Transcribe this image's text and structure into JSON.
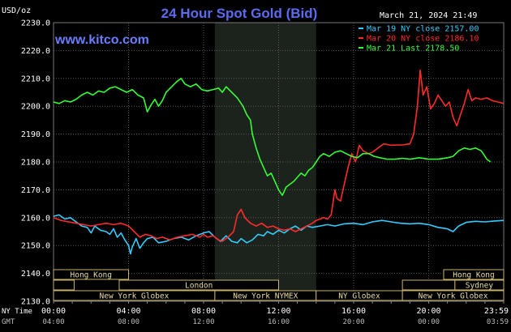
{
  "chart_data": {
    "type": "line",
    "title": "24 Hour Spot Gold (Bid)",
    "watermark": "www.kitco.com",
    "ylabel": "USD/oz",
    "date_label": "March 21, 2024 21:49",
    "ylim": [
      2130,
      2230
    ],
    "y_ticks": [
      "2230.0",
      "2220.0",
      "2210.0",
      "2200.0",
      "2190.0",
      "2180.0",
      "2170.0",
      "2160.0",
      "2150.0",
      "2140.0",
      "2130.0"
    ],
    "xlim": [
      0,
      24
    ],
    "x_ticks_ny": [
      "00:00",
      "04:00",
      "08:00",
      "12:00",
      "16:00",
      "20:00",
      "23:59"
    ],
    "x_ticks_gmt": [
      "04:00",
      "08:00",
      "12:00",
      "16:00",
      "20:00",
      "00:00",
      "03:59"
    ],
    "x_axis_ny_label": "NY Time",
    "x_axis_gmt_label": "GMT",
    "shaded_window": [
      8.6,
      14.0
    ],
    "grid": true,
    "legend_position": "top-right",
    "colors": {
      "background": "#000000",
      "grid": "#5a5a5a",
      "axis_text": "#ffffff",
      "title": "#5b6cf0",
      "watermark": "#6b7dff",
      "shade": "#1c221c",
      "session_box": "#c8b26a",
      "session_text": "#e8dca0"
    },
    "series": [
      {
        "name": "Mar 19 NY close 2157.00",
        "color": "#33ccff",
        "points": [
          [
            0,
            2160.5
          ],
          [
            0.3,
            2161
          ],
          [
            0.6,
            2159.5
          ],
          [
            0.9,
            2160
          ],
          [
            1.2,
            2158.5
          ],
          [
            1.5,
            2157
          ],
          [
            1.8,
            2156.5
          ],
          [
            2.0,
            2154.5
          ],
          [
            2.2,
            2157
          ],
          [
            2.5,
            2155.5
          ],
          [
            2.8,
            2155
          ],
          [
            3.0,
            2154
          ],
          [
            3.2,
            2156
          ],
          [
            3.4,
            2153
          ],
          [
            3.6,
            2154.5
          ],
          [
            3.8,
            2152
          ],
          [
            4.0,
            2150
          ],
          [
            4.1,
            2147
          ],
          [
            4.2,
            2149.5
          ],
          [
            4.4,
            2152.5
          ],
          [
            4.6,
            2149
          ],
          [
            4.8,
            2151
          ],
          [
            5.0,
            2152.5
          ],
          [
            5.3,
            2153
          ],
          [
            5.6,
            2151
          ],
          [
            6.0,
            2151.5
          ],
          [
            6.4,
            2152.5
          ],
          [
            6.8,
            2153
          ],
          [
            7.2,
            2152
          ],
          [
            7.6,
            2153.5
          ],
          [
            8.0,
            2154.5
          ],
          [
            8.3,
            2155
          ],
          [
            8.6,
            2153
          ],
          [
            8.9,
            2151.5
          ],
          [
            9.2,
            2153.5
          ],
          [
            9.5,
            2151.5
          ],
          [
            9.8,
            2151
          ],
          [
            10.0,
            2152.5
          ],
          [
            10.3,
            2151
          ],
          [
            10.6,
            2152
          ],
          [
            10.9,
            2154
          ],
          [
            11.2,
            2153.5
          ],
          [
            11.4,
            2155
          ],
          [
            11.7,
            2154
          ],
          [
            12.0,
            2155.5
          ],
          [
            12.3,
            2154.5
          ],
          [
            12.6,
            2156
          ],
          [
            12.9,
            2157
          ],
          [
            13.2,
            2155.5
          ],
          [
            13.5,
            2157
          ],
          [
            13.8,
            2156.5
          ],
          [
            14.2,
            2157
          ],
          [
            14.6,
            2157.5
          ],
          [
            15.0,
            2157
          ],
          [
            15.5,
            2157.8
          ],
          [
            16.0,
            2158
          ],
          [
            16.5,
            2157.5
          ],
          [
            17.0,
            2158.5
          ],
          [
            17.5,
            2159
          ],
          [
            18.0,
            2158.5
          ],
          [
            18.5,
            2158
          ],
          [
            19.0,
            2157.8
          ],
          [
            19.5,
            2158
          ],
          [
            20.0,
            2157.5
          ],
          [
            20.5,
            2156.5
          ],
          [
            21.0,
            2156
          ],
          [
            21.3,
            2155
          ],
          [
            21.6,
            2157
          ],
          [
            22.0,
            2158.3
          ],
          [
            22.5,
            2158.7
          ],
          [
            23.0,
            2158.5
          ],
          [
            23.5,
            2158.8
          ],
          [
            24.0,
            2159
          ]
        ]
      },
      {
        "name": "Mar 20 NY close 2186.10",
        "color": "#ff2a2a",
        "points": [
          [
            0,
            2160
          ],
          [
            0.4,
            2159
          ],
          [
            0.8,
            2158.5
          ],
          [
            1.2,
            2158
          ],
          [
            1.6,
            2157.5
          ],
          [
            2.0,
            2157
          ],
          [
            2.4,
            2157.5
          ],
          [
            2.8,
            2158
          ],
          [
            3.2,
            2157.5
          ],
          [
            3.6,
            2158
          ],
          [
            4.0,
            2157
          ],
          [
            4.3,
            2155
          ],
          [
            4.6,
            2153
          ],
          [
            4.9,
            2154
          ],
          [
            5.2,
            2153.5
          ],
          [
            5.5,
            2152.5
          ],
          [
            5.8,
            2153
          ],
          [
            6.2,
            2152
          ],
          [
            6.6,
            2153
          ],
          [
            7.0,
            2153.5
          ],
          [
            7.4,
            2154
          ],
          [
            7.8,
            2153
          ],
          [
            8.0,
            2154
          ],
          [
            8.2,
            2153
          ],
          [
            8.5,
            2153.5
          ],
          [
            8.8,
            2152
          ],
          [
            9.0,
            2151.5
          ],
          [
            9.3,
            2153
          ],
          [
            9.6,
            2155
          ],
          [
            9.8,
            2161
          ],
          [
            10.0,
            2163
          ],
          [
            10.2,
            2160
          ],
          [
            10.5,
            2158
          ],
          [
            10.8,
            2157
          ],
          [
            11.1,
            2158
          ],
          [
            11.4,
            2156.5
          ],
          [
            11.7,
            2157
          ],
          [
            12.0,
            2156
          ],
          [
            12.3,
            2155.5
          ],
          [
            12.6,
            2156
          ],
          [
            12.9,
            2155
          ],
          [
            13.2,
            2156
          ],
          [
            13.5,
            2157
          ],
          [
            13.8,
            2158
          ],
          [
            14.0,
            2159
          ],
          [
            14.2,
            2159.5
          ],
          [
            14.4,
            2160
          ],
          [
            14.6,
            2159.5
          ],
          [
            14.8,
            2161
          ],
          [
            15.0,
            2170
          ],
          [
            15.1,
            2167
          ],
          [
            15.3,
            2166
          ],
          [
            15.5,
            2172
          ],
          [
            15.7,
            2178
          ],
          [
            15.9,
            2183
          ],
          [
            16.1,
            2180
          ],
          [
            16.3,
            2186
          ],
          [
            16.5,
            2184
          ],
          [
            16.8,
            2183
          ],
          [
            17.0,
            2183.5
          ],
          [
            17.3,
            2185
          ],
          [
            17.6,
            2186.5
          ],
          [
            18.0,
            2186
          ],
          [
            18.3,
            2186.1
          ],
          [
            18.6,
            2186.1
          ],
          [
            19.0,
            2186.5
          ],
          [
            19.2,
            2190
          ],
          [
            19.4,
            2200
          ],
          [
            19.55,
            2213
          ],
          [
            19.7,
            2204
          ],
          [
            19.9,
            2207
          ],
          [
            20.1,
            2199
          ],
          [
            20.3,
            2201
          ],
          [
            20.5,
            2204
          ],
          [
            20.7,
            2202
          ],
          [
            20.9,
            2200
          ],
          [
            21.1,
            2201.5
          ],
          [
            21.3,
            2196
          ],
          [
            21.5,
            2193
          ],
          [
            21.7,
            2197
          ],
          [
            21.9,
            2201
          ],
          [
            22.1,
            2206
          ],
          [
            22.3,
            2202
          ],
          [
            22.5,
            2203
          ],
          [
            22.8,
            2202.5
          ],
          [
            23.1,
            2203
          ],
          [
            23.4,
            2202
          ],
          [
            23.7,
            2201.5
          ],
          [
            24.0,
            2201
          ]
        ]
      },
      {
        "name": "Mar 21 Last 2178.50",
        "color": "#33ff33",
        "points": [
          [
            0,
            2201.5
          ],
          [
            0.3,
            2201
          ],
          [
            0.6,
            2202
          ],
          [
            0.9,
            2201.5
          ],
          [
            1.2,
            2202.5
          ],
          [
            1.5,
            2204
          ],
          [
            1.8,
            2205
          ],
          [
            2.1,
            2204
          ],
          [
            2.4,
            2205.5
          ],
          [
            2.7,
            2205
          ],
          [
            3.0,
            2206.5
          ],
          [
            3.3,
            2207
          ],
          [
            3.6,
            2206
          ],
          [
            3.9,
            2205
          ],
          [
            4.2,
            2206
          ],
          [
            4.5,
            2204
          ],
          [
            4.8,
            2203
          ],
          [
            5.0,
            2198
          ],
          [
            5.2,
            2200.5
          ],
          [
            5.4,
            2202.5
          ],
          [
            5.6,
            2200
          ],
          [
            5.8,
            2202
          ],
          [
            6.0,
            2205
          ],
          [
            6.3,
            2207
          ],
          [
            6.6,
            2209
          ],
          [
            6.8,
            2210
          ],
          [
            7.0,
            2208
          ],
          [
            7.3,
            2207
          ],
          [
            7.6,
            2208
          ],
          [
            7.9,
            2206
          ],
          [
            8.2,
            2205.5
          ],
          [
            8.5,
            2206
          ],
          [
            8.8,
            2206.5
          ],
          [
            9.0,
            2205
          ],
          [
            9.2,
            2207
          ],
          [
            9.5,
            2205
          ],
          [
            9.8,
            2203
          ],
          [
            10.1,
            2200
          ],
          [
            10.3,
            2197
          ],
          [
            10.5,
            2195
          ],
          [
            10.6,
            2190
          ],
          [
            10.8,
            2185
          ],
          [
            11.0,
            2181
          ],
          [
            11.2,
            2178
          ],
          [
            11.4,
            2175
          ],
          [
            11.6,
            2176
          ],
          [
            11.8,
            2173
          ],
          [
            12.0,
            2170
          ],
          [
            12.2,
            2168
          ],
          [
            12.4,
            2171
          ],
          [
            12.6,
            2172
          ],
          [
            12.8,
            2173
          ],
          [
            13.0,
            2174.5
          ],
          [
            13.2,
            2176
          ],
          [
            13.4,
            2175
          ],
          [
            13.6,
            2177
          ],
          [
            13.8,
            2178
          ],
          [
            14.0,
            2180
          ],
          [
            14.2,
            2182
          ],
          [
            14.4,
            2183
          ],
          [
            14.7,
            2182
          ],
          [
            15.0,
            2183.5
          ],
          [
            15.3,
            2184
          ],
          [
            15.6,
            2183
          ],
          [
            15.9,
            2182
          ],
          [
            16.2,
            2181.5
          ],
          [
            16.5,
            2183
          ],
          [
            16.8,
            2183
          ],
          [
            17.1,
            2182
          ],
          [
            17.4,
            2181.5
          ],
          [
            17.8,
            2181
          ],
          [
            18.2,
            2181
          ],
          [
            18.6,
            2181.3
          ],
          [
            19.0,
            2181
          ],
          [
            19.5,
            2181.5
          ],
          [
            20.0,
            2181
          ],
          [
            20.5,
            2181
          ],
          [
            21.0,
            2181.5
          ],
          [
            21.3,
            2182
          ],
          [
            21.6,
            2184
          ],
          [
            21.9,
            2185
          ],
          [
            22.2,
            2184.5
          ],
          [
            22.5,
            2185
          ],
          [
            22.8,
            2184
          ],
          [
            23.1,
            2181
          ],
          [
            23.3,
            2180
          ]
        ]
      }
    ],
    "session_rows": [
      [
        {
          "label": "Hong Kong",
          "start": -4,
          "end": 4
        },
        {
          "label": "Hong Kong",
          "start": 20.8,
          "end": 28
        }
      ],
      [
        {
          "label": "",
          "start": -2,
          "end": 1.1
        },
        {
          "label": "London",
          "start": 3.5,
          "end": 12
        },
        {
          "label": "",
          "start": 18.6,
          "end": 21.4
        },
        {
          "label": "Sydney",
          "start": 21.4,
          "end": 28
        }
      ],
      [
        {
          "label": "New York Globex",
          "start": 0,
          "end": 8.6
        },
        {
          "label": "New York NYMEX",
          "start": 8.6,
          "end": 14.0
        },
        {
          "label": "NY Globex",
          "start": 14.0,
          "end": 18.6
        },
        {
          "label": "New York Globex",
          "start": 18.6,
          "end": 28
        }
      ]
    ]
  }
}
